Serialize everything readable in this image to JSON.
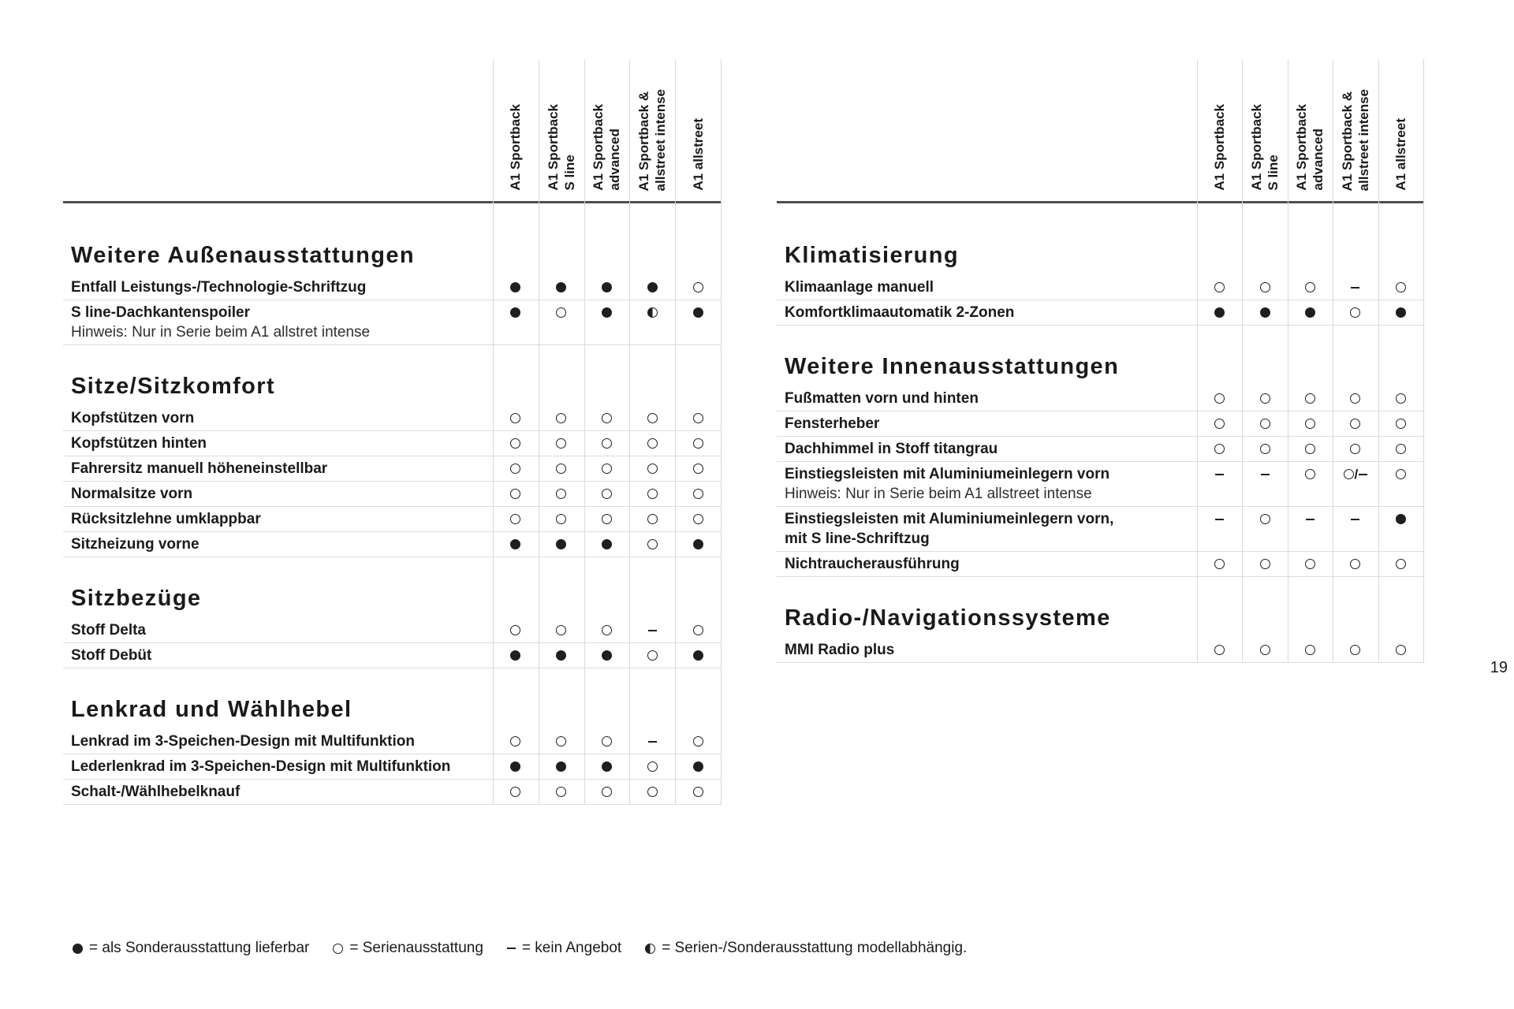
{
  "page_number": "19",
  "model_columns": [
    "A1 Sportback",
    "A1 Sportback\nS line",
    "A1 Sportback\nadvanced",
    "A1 Sportback &\nallstreet intense",
    "A1 allstreet"
  ],
  "symbol_glyphs": {
    "filled": "●",
    "open": "○",
    "dash": "–",
    "half": "◐",
    "open_or_dash": "○/–"
  },
  "tables": [
    {
      "id": "left",
      "sections": [
        {
          "title": "Weitere Außenausstattungen",
          "rows": [
            {
              "label": "Entfall Leistungs-/Technologie-Schriftzug",
              "values": [
                "filled",
                "filled",
                "filled",
                "filled",
                "open"
              ]
            },
            {
              "label": "S line-Dachkantenspoiler",
              "note": "Hinweis: Nur in Serie beim A1 allstret intense",
              "values": [
                "filled",
                "open",
                "filled",
                "half",
                "filled"
              ]
            }
          ]
        },
        {
          "title": "Sitze/Sitzkomfort",
          "rows": [
            {
              "label": "Kopfstützen vorn",
              "values": [
                "open",
                "open",
                "open",
                "open",
                "open"
              ]
            },
            {
              "label": "Kopfstützen hinten",
              "values": [
                "open",
                "open",
                "open",
                "open",
                "open"
              ]
            },
            {
              "label": "Fahrersitz manuell höheneinstellbar",
              "values": [
                "open",
                "open",
                "open",
                "open",
                "open"
              ]
            },
            {
              "label": "Normalsitze vorn",
              "values": [
                "open",
                "open",
                "open",
                "open",
                "open"
              ]
            },
            {
              "label": "Rücksitzlehne umklappbar",
              "values": [
                "open",
                "open",
                "open",
                "open",
                "open"
              ]
            },
            {
              "label": "Sitzheizung vorne",
              "values": [
                "filled",
                "filled",
                "filled",
                "open",
                "filled"
              ]
            }
          ]
        },
        {
          "title": "Sitzbezüge",
          "rows": [
            {
              "label": "Stoff Delta",
              "values": [
                "open",
                "open",
                "open",
                "dash",
                "open"
              ]
            },
            {
              "label": "Stoff Debüt",
              "values": [
                "filled",
                "filled",
                "filled",
                "open",
                "filled"
              ]
            }
          ]
        },
        {
          "title": "Lenkrad und Wählhebel",
          "rows": [
            {
              "label": "Lenkrad im 3-Speichen-Design mit Multifunktion",
              "values": [
                "open",
                "open",
                "open",
                "dash",
                "open"
              ]
            },
            {
              "label": "Lederlenkrad im 3-Speichen-Design mit Multifunktion",
              "values": [
                "filled",
                "filled",
                "filled",
                "open",
                "filled"
              ]
            },
            {
              "label": "Schalt-/Wählhebelknauf",
              "values": [
                "open",
                "open",
                "open",
                "open",
                "open"
              ]
            }
          ]
        }
      ]
    },
    {
      "id": "right",
      "sections": [
        {
          "title": "Klimatisierung",
          "rows": [
            {
              "label": "Klimaanlage manuell",
              "values": [
                "open",
                "open",
                "open",
                "dash",
                "open"
              ]
            },
            {
              "label": "Komfortklimaautomatik 2-Zonen",
              "values": [
                "filled",
                "filled",
                "filled",
                "open",
                "filled"
              ]
            }
          ]
        },
        {
          "title": "Weitere Innenausstattungen",
          "rows": [
            {
              "label": "Fußmatten vorn und hinten",
              "values": [
                "open",
                "open",
                "open",
                "open",
                "open"
              ]
            },
            {
              "label": "Fensterheber",
              "values": [
                "open",
                "open",
                "open",
                "open",
                "open"
              ]
            },
            {
              "label": "Dachhimmel in Stoff titangrau",
              "values": [
                "open",
                "open",
                "open",
                "open",
                "open"
              ]
            },
            {
              "label": "Einstiegsleisten mit Aluminiumeinlegern vorn",
              "note": "Hinweis: Nur in Serie beim A1 allstreet intense",
              "values": [
                "dash",
                "dash",
                "open",
                "open_or_dash",
                "open"
              ]
            },
            {
              "label": "Einstiegsleisten mit Aluminiumeinlegern vorn,\nmit S line-Schriftzug",
              "values": [
                "dash",
                "open",
                "dash",
                "dash",
                "filled"
              ]
            },
            {
              "label": "Nichtraucherausführung",
              "values": [
                "open",
                "open",
                "open",
                "open",
                "open"
              ]
            }
          ]
        },
        {
          "title": "Radio-/Navigationssysteme",
          "rows": [
            {
              "label": "MMI Radio plus",
              "values": [
                "open",
                "open",
                "open",
                "open",
                "open"
              ]
            }
          ]
        }
      ]
    }
  ],
  "legend": {
    "items": [
      {
        "symbol": "filled",
        "label": "= als Sonderausstattung lieferbar"
      },
      {
        "symbol": "open",
        "label": "= Serienausstattung"
      },
      {
        "symbol": "dash",
        "label": "= kein Angebot"
      },
      {
        "symbol": "half",
        "label": "= Serien-/Sonderausstattung modellabhängig."
      }
    ]
  }
}
